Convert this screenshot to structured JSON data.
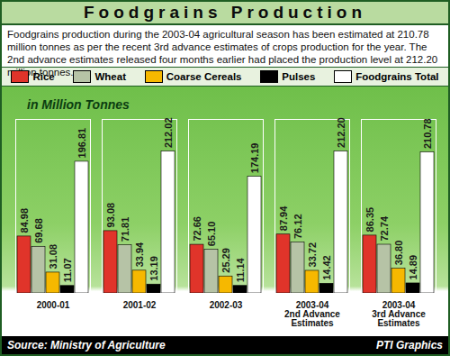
{
  "chart_data": {
    "type": "bar",
    "title": "Foodgrains Production",
    "subtitle": "Foodgrains production during the 2003-04 agricultural season has been estimated at 210.78 million tonnes as per the recent 3rd advance estimates of crops production for the year. The 2nd advance estimates released four months earlier had placed the production level at 212.20 million tonnes.",
    "ylabel": "in Million Tonnes",
    "source": "Source: Ministry of Agriculture",
    "credit": "PTI Graphics",
    "categories": [
      "2000-01",
      "2001-02",
      "2002-03",
      "2003-04\n2nd Advance\nEstimates",
      "2003-04\n3rd Advance\nEstimates"
    ],
    "series": [
      {
        "name": "Rice",
        "color": "#e0342a",
        "values": [
          84.98,
          93.08,
          72.66,
          87.94,
          86.35
        ],
        "value_labels": [
          "84.98",
          "93.08",
          "72.66",
          "87.94",
          "86.35"
        ]
      },
      {
        "name": "Wheat",
        "color": "#b6c3a6",
        "values": [
          69.68,
          71.81,
          65.1,
          76.12,
          72.74
        ],
        "value_labels": [
          "69.68",
          "71.81",
          "65.10",
          "76.12",
          "72.74"
        ]
      },
      {
        "name": "Coarse Cereals",
        "color": "#f6b800",
        "values": [
          31.08,
          33.94,
          25.29,
          33.72,
          36.8
        ],
        "value_labels": [
          "31.08",
          "33.94",
          "25.29",
          "33.72",
          "36.80"
        ]
      },
      {
        "name": "Pulses",
        "color": "#000000",
        "values": [
          11.07,
          13.19,
          11.14,
          14.42,
          14.89
        ],
        "value_labels": [
          "11.07",
          "13.19",
          "11.14",
          "14.42",
          "14.89"
        ]
      },
      {
        "name": "Foodgrains Total",
        "color": "#ffffff",
        "values": [
          196.81,
          212.02,
          174.19,
          212.2,
          210.78
        ],
        "value_labels": [
          "196.81",
          "212.02",
          "174.19",
          "212.20",
          "210.78"
        ]
      }
    ],
    "ylim": [
      0,
      260
    ],
    "legend": "top",
    "data_labels": true,
    "tick_labels": "x"
  }
}
